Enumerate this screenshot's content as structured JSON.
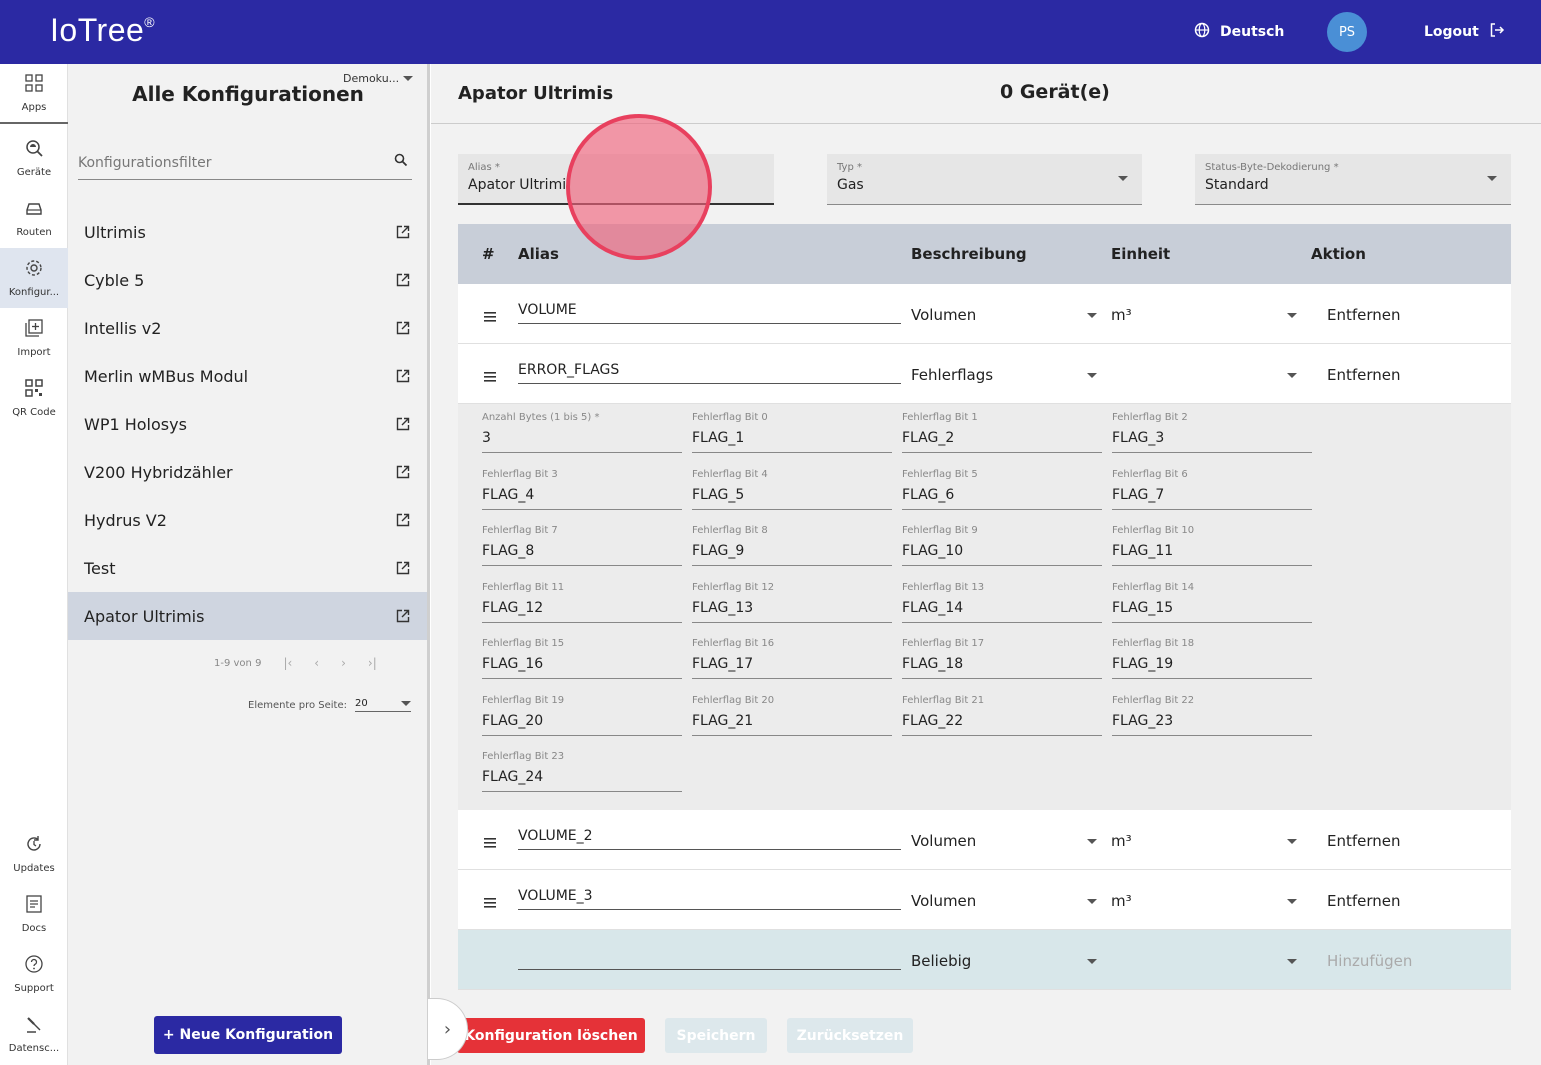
{
  "header": {
    "brand": "IoTree",
    "brand_mark": "®",
    "language": "Deutsch",
    "avatar_initials": "PS",
    "logout": "Logout",
    "bg_color": "#2b29a3"
  },
  "rail": {
    "items": [
      {
        "label": "Apps",
        "icon": "apps-grid-icon"
      },
      {
        "label": "Geräte",
        "icon": "device-search-icon"
      },
      {
        "label": "Routen",
        "icon": "car-icon"
      },
      {
        "label": "Konfigur...",
        "icon": "gear-icon"
      },
      {
        "label": "Import",
        "icon": "import-icon"
      },
      {
        "label": "QR Code",
        "icon": "qr-code-icon"
      },
      {
        "label": "Updates",
        "icon": "updates-icon"
      },
      {
        "label": "Docs",
        "icon": "docs-icon"
      },
      {
        "label": "Support",
        "icon": "help-icon"
      },
      {
        "label": "Datensc...",
        "icon": "gavel-icon"
      }
    ]
  },
  "list": {
    "title": "Alle Konfigurationen",
    "tenant": "Demoku...",
    "filter_placeholder": "Konfigurationsfilter",
    "items": [
      "Ultrimis",
      "Cyble 5",
      "Intellis v2",
      "Merlin wMBus Modul",
      "WP1 Holosys",
      "V200 Hybridzähler",
      "Hydrus V2",
      "Test",
      "Apator Ultrimis"
    ],
    "pagination": "1-9 von 9",
    "per_page_label": "Elemente pro Seite:",
    "per_page_value": "20",
    "new_button": "+ Neue Konfiguration"
  },
  "main": {
    "title": "Apator Ultrimis",
    "device_count": "0 Gerät(e)",
    "alias_label": "Alias *",
    "alias_value": "Apator Ultrimi",
    "type_label": "Typ *",
    "type_value": "Gas",
    "status_label": "Status-Byte-Dekodierung *",
    "status_value": "Standard",
    "columns": {
      "hash": "#",
      "alias": "Alias",
      "description": "Beschreibung",
      "unit": "Einheit",
      "action": "Aktion"
    },
    "rows": [
      {
        "alias": "VOLUME",
        "description": "Volumen",
        "unit": "m³",
        "action": "Entfernen"
      },
      {
        "alias": "ERROR_FLAGS",
        "description": "Fehlerflags",
        "unit": "",
        "action": "Entfernen"
      },
      {
        "alias": "VOLUME_2",
        "description": "Volumen",
        "unit": "m³",
        "action": "Entfernen"
      },
      {
        "alias": "VOLUME_3",
        "description": "Volumen",
        "unit": "m³",
        "action": "Entfernen"
      }
    ],
    "add_row": {
      "alias": "",
      "description": "Beliebig",
      "unit": "",
      "action": "Hinzufügen"
    },
    "flags": [
      {
        "label": "Anzahl Bytes (1 bis 5) *",
        "value": "3"
      },
      {
        "label": "Fehlerflag Bit 0",
        "value": "FLAG_1"
      },
      {
        "label": "Fehlerflag Bit 1",
        "value": "FLAG_2"
      },
      {
        "label": "Fehlerflag Bit 2",
        "value": "FLAG_3"
      },
      {
        "label": "Fehlerflag Bit 3",
        "value": "FLAG_4"
      },
      {
        "label": "Fehlerflag Bit 4",
        "value": "FLAG_5"
      },
      {
        "label": "Fehlerflag Bit 5",
        "value": "FLAG_6"
      },
      {
        "label": "Fehlerflag Bit 6",
        "value": "FLAG_7"
      },
      {
        "label": "Fehlerflag Bit 7",
        "value": "FLAG_8"
      },
      {
        "label": "Fehlerflag Bit 8",
        "value": "FLAG_9"
      },
      {
        "label": "Fehlerflag Bit 9",
        "value": "FLAG_10"
      },
      {
        "label": "Fehlerflag Bit 10",
        "value": "FLAG_11"
      },
      {
        "label": "Fehlerflag Bit 11",
        "value": "FLAG_12"
      },
      {
        "label": "Fehlerflag Bit 12",
        "value": "FLAG_13"
      },
      {
        "label": "Fehlerflag Bit 13",
        "value": "FLAG_14"
      },
      {
        "label": "Fehlerflag Bit 14",
        "value": "FLAG_15"
      },
      {
        "label": "Fehlerflag Bit 15",
        "value": "FLAG_16"
      },
      {
        "label": "Fehlerflag Bit 16",
        "value": "FLAG_17"
      },
      {
        "label": "Fehlerflag Bit 17",
        "value": "FLAG_18"
      },
      {
        "label": "Fehlerflag Bit 18",
        "value": "FLAG_19"
      },
      {
        "label": "Fehlerflag Bit 19",
        "value": "FLAG_20"
      },
      {
        "label": "Fehlerflag Bit 20",
        "value": "FLAG_21"
      },
      {
        "label": "Fehlerflag Bit 21",
        "value": "FLAG_22"
      },
      {
        "label": "Fehlerflag Bit 22",
        "value": "FLAG_23"
      },
      {
        "label": "Fehlerflag Bit 23",
        "value": "FLAG_24"
      }
    ],
    "delete_button": "Konfiguration löschen",
    "save_button": "Speichern",
    "reset_button": "Zurücksetzen",
    "danger_color": "#e53238"
  }
}
